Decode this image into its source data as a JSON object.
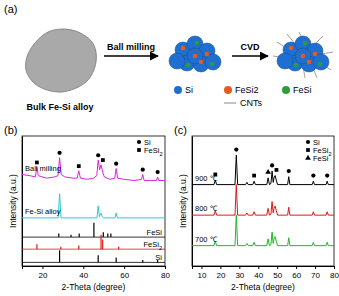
{
  "diagram": {
    "panel_label": "(a)",
    "bulk_label": "Bulk Fe-Si alloy",
    "step1": "Ball milling",
    "step2": "CVD",
    "legend": [
      {
        "label": "Si",
        "color": "#1f6fd0"
      },
      {
        "label": "FeSi2",
        "color": "#e65a1e"
      },
      {
        "label": "FeSi",
        "color": "#2e9c3a"
      }
    ],
    "cnt_label": "CNTs"
  },
  "chart_data": [
    {
      "type": "line",
      "title": "(b)",
      "x_label": "2-Theta (degree)",
      "y_label": "Intensity (a.u.)",
      "xlim": [
        10,
        80
      ],
      "xticks": [
        20,
        40,
        60,
        80
      ],
      "ylim": [
        0,
        108
      ],
      "tick_labels": "x",
      "legend": "upper-right",
      "legend_entries": [
        {
          "label": "Si",
          "marker": "circle"
        },
        {
          "label": "FeSi2",
          "marker": "square"
        }
      ],
      "series": [
        {
          "name": "Ball milling",
          "color": "#e020e0",
          "type": "line",
          "x": [
            10,
            14,
            16.5,
            17.3,
            18,
            22,
            26,
            27.6,
            28.4,
            29.2,
            31,
            35,
            37,
            37.8,
            38.6,
            42,
            45,
            46.6,
            47.3,
            48,
            48.7,
            49.5,
            50.3,
            53,
            55.4,
            56.1,
            56.8,
            60,
            65,
            68.5,
            69.1,
            69.8,
            73,
            75.8,
            76.4,
            77,
            80
          ],
          "values": [
            76,
            75,
            74,
            82,
            75,
            73,
            74,
            75,
            90,
            76,
            74,
            73,
            73,
            79,
            73,
            72,
            73,
            75,
            88,
            80,
            84,
            78,
            74,
            72,
            73,
            81,
            73,
            72,
            71,
            72,
            76,
            71,
            71,
            71,
            74,
            71,
            71
          ]
        },
        {
          "name": "Fe-Si alloy",
          "color": "#30c8dc",
          "type": "line",
          "x": [
            10,
            20,
            27.7,
            28.4,
            29.1,
            40,
            45,
            46.7,
            47.3,
            47.9,
            48.7,
            49.3,
            50,
            55.5,
            56.1,
            56.7,
            80
          ],
          "values": [
            40,
            40,
            40,
            60,
            40,
            40,
            40,
            40,
            50,
            41,
            44,
            41,
            40,
            40,
            44,
            40,
            40
          ]
        },
        {
          "name": "FeSi",
          "color": "#000000",
          "type": "stick",
          "base": 24,
          "x": [
            28.0,
            34.0,
            38.0,
            45.2,
            49.8,
            52.0,
            53.5
          ],
          "values": [
            27,
            26,
            27,
            36,
            28,
            27,
            27
          ]
        },
        {
          "name": "FeSi2",
          "color": "#e01818",
          "type": "stick",
          "base": 14,
          "x": [
            17.3,
            29.0,
            37.8,
            48.7,
            49.5,
            57.3
          ],
          "values": [
            18,
            16,
            17,
            26,
            22,
            16
          ]
        },
        {
          "name": "Si",
          "color": "#000000",
          "type": "stick",
          "base": 3,
          "x": [
            28.4,
            47.3,
            56.1,
            69.1,
            76.4
          ],
          "values": [
            13,
            9,
            7,
            5,
            5
          ]
        }
      ],
      "peak_markers": [
        {
          "x": 17.3,
          "y": 86,
          "marker": "square"
        },
        {
          "x": 37.8,
          "y": 83,
          "marker": "square"
        },
        {
          "x": 49.6,
          "y": 88,
          "marker": "square"
        },
        {
          "x": 28.4,
          "y": 94,
          "marker": "circle"
        },
        {
          "x": 47.3,
          "y": 92,
          "marker": "circle"
        },
        {
          "x": 56.1,
          "y": 85,
          "marker": "circle"
        },
        {
          "x": 69.1,
          "y": 80,
          "marker": "circle"
        },
        {
          "x": 76.4,
          "y": 78,
          "marker": "circle"
        }
      ]
    },
    {
      "type": "line",
      "title": "(c)",
      "x_label": "2-Theta (degree)",
      "y_label": "Intensity (a.u.)",
      "xlim": [
        5,
        80
      ],
      "xticks": [
        10,
        20,
        30,
        40,
        50,
        60,
        70,
        80
      ],
      "ylim": [
        0,
        115
      ],
      "tick_labels": "x",
      "legend": "upper-right",
      "legend_entries": [
        {
          "label": "Si",
          "marker": "circle"
        },
        {
          "label": "FeSi2",
          "marker": "square"
        },
        {
          "label": "FeSi",
          "marker": "triangle"
        }
      ],
      "series": [
        {
          "name": "900 ℃",
          "color": "#000000",
          "type": "line",
          "x": [
            5,
            16.6,
            17.3,
            18,
            27.7,
            28.4,
            29.1,
            33.3,
            34,
            34.7,
            37.1,
            37.8,
            38.5,
            44.5,
            45.2,
            45.9,
            46.7,
            47.3,
            47.9,
            48.3,
            48.9,
            49.5,
            50.2,
            55.5,
            56.1,
            56.7,
            68.5,
            69.1,
            69.7,
            75.8,
            76.4,
            77,
            80
          ],
          "values": [
            72,
            72,
            76,
            72,
            72,
            98,
            72,
            72,
            74,
            72,
            72,
            75,
            72,
            72,
            78,
            72,
            73,
            84,
            74,
            78,
            80,
            76,
            72,
            72,
            79,
            72,
            72,
            75,
            72,
            72,
            75,
            72,
            72
          ]
        },
        {
          "name": "800 ℃",
          "color": "#e01818",
          "type": "line",
          "x": [
            5,
            16.6,
            17.3,
            18,
            27.7,
            28.4,
            29.1,
            33.3,
            34,
            34.7,
            37.1,
            37.8,
            38.5,
            44.5,
            45.2,
            45.9,
            46.7,
            47.3,
            47.9,
            48.3,
            48.9,
            49.5,
            50.2,
            55.5,
            56.1,
            56.7,
            68.5,
            69.1,
            69.7,
            75.8,
            76.4,
            77,
            80
          ],
          "values": [
            45,
            45,
            49,
            45,
            45,
            72,
            45,
            45,
            47,
            45,
            45,
            48,
            45,
            45,
            51,
            45,
            46,
            57,
            47,
            51,
            53,
            49,
            45,
            45,
            52,
            45,
            45,
            48,
            45,
            45,
            48,
            45,
            45
          ]
        },
        {
          "name": "700 ℃",
          "color": "#22b822",
          "type": "line",
          "x": [
            5,
            16.6,
            17.3,
            18,
            27.7,
            28.4,
            29.1,
            33.3,
            34,
            34.7,
            37.1,
            37.8,
            38.5,
            44.5,
            45.2,
            45.9,
            46.7,
            47.3,
            47.9,
            48.3,
            48.9,
            49.5,
            50.2,
            55.5,
            56.1,
            56.7,
            68.5,
            69.1,
            69.7,
            75.8,
            76.4,
            77,
            80
          ],
          "values": [
            18,
            18,
            22,
            18,
            18,
            45,
            18,
            18,
            20,
            18,
            18,
            21,
            18,
            18,
            24,
            18,
            19,
            30,
            20,
            24,
            26,
            22,
            18,
            18,
            25,
            18,
            18,
            21,
            18,
            18,
            21,
            18,
            18
          ]
        }
      ],
      "peak_markers": [
        {
          "x": 28.4,
          "y": 103,
          "marker": "circle"
        },
        {
          "x": 47.3,
          "y": 89,
          "marker": "circle"
        },
        {
          "x": 56.1,
          "y": 84,
          "marker": "circle"
        },
        {
          "x": 69.1,
          "y": 80,
          "marker": "circle"
        },
        {
          "x": 76.4,
          "y": 80,
          "marker": "circle"
        },
        {
          "x": 17.3,
          "y": 81,
          "marker": "square"
        },
        {
          "x": 37.8,
          "y": 80,
          "marker": "square"
        },
        {
          "x": 49.6,
          "y": 85,
          "marker": "square"
        },
        {
          "x": 45.2,
          "y": 83,
          "marker": "triangle"
        }
      ]
    }
  ]
}
